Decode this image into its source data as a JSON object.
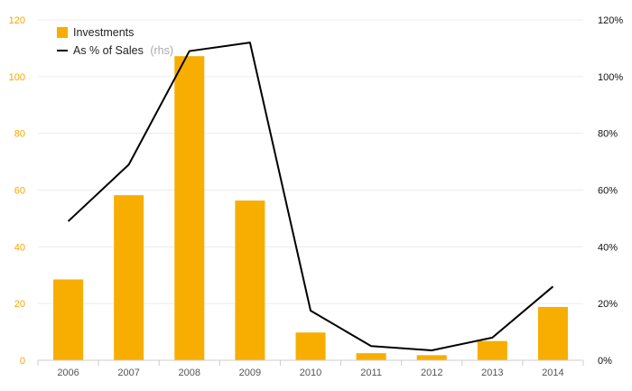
{
  "chart_data": {
    "type": "bar+line",
    "categories": [
      "2006",
      "2007",
      "2008",
      "2009",
      "2010",
      "2011",
      "2012",
      "2013",
      "2014"
    ],
    "series": [
      {
        "name": "Investments",
        "kind": "bar",
        "axis": "left",
        "color": "#f7ae00",
        "values": [
          28.5,
          58.2,
          107.2,
          56.3,
          9.8,
          2.5,
          1.8,
          6.8,
          18.8
        ]
      },
      {
        "name": "As % of Sales",
        "name_note": "(rhs)",
        "kind": "line",
        "axis": "right",
        "color": "#000000",
        "values": [
          49,
          69,
          109,
          112,
          17.5,
          5,
          3.5,
          8,
          26
        ]
      }
    ],
    "y_left": {
      "ylim": [
        0,
        120
      ],
      "ticks": [
        "0",
        "20",
        "40",
        "60",
        "80",
        "100",
        "120"
      ],
      "tick_color": "#f5a800"
    },
    "y_right": {
      "ylim": [
        0,
        120
      ],
      "ticks": [
        "0%",
        "20%",
        "40%",
        "60%",
        "80%",
        "100%",
        "120%"
      ],
      "tick_color": "#111111"
    },
    "grid": true,
    "legend_position": "top-left"
  }
}
